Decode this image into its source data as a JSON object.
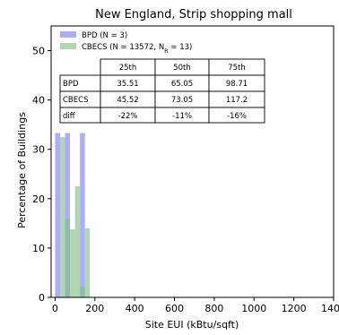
{
  "chart_data": {
    "type": "bar",
    "title": "New England, Strip shopping mall",
    "xlabel": "Site EUI (kBtu/sqft)",
    "ylabel": "Percentage of Buildings",
    "xlim": [
      -20,
      1400
    ],
    "ylim": [
      0,
      55
    ],
    "xticks": [
      "0",
      "200",
      "400",
      "600",
      "800",
      "1000",
      "1200",
      "1400"
    ],
    "yticks": [
      "0",
      "10",
      "20",
      "30",
      "40",
      "50"
    ],
    "legend_position": "top-left",
    "series": [
      {
        "name": "BPD (N = 3)",
        "color": "#7b7bff",
        "bins": [
          {
            "x0": 0,
            "x1": 25,
            "value": 33.3
          },
          {
            "x0": 50,
            "x1": 75,
            "value": 33.3
          },
          {
            "x0": 125,
            "x1": 150,
            "value": 33.3
          }
        ]
      },
      {
        "name": "CBECS (N = 13572, N",
        "name_sub": "R",
        "name_suffix": " = 13)",
        "color": "#80c080",
        "bins": [
          {
            "x0": 25,
            "x1": 50,
            "value": 32.5
          },
          {
            "x0": 50,
            "x1": 75,
            "value": 16.0
          },
          {
            "x0": 75,
            "x1": 100,
            "value": 13.8
          },
          {
            "x0": 100,
            "x1": 125,
            "value": 22.5
          },
          {
            "x0": 125,
            "x1": 150,
            "value": 2.2
          },
          {
            "x0": 150,
            "x1": 175,
            "value": 14.0
          }
        ]
      }
    ],
    "table": {
      "headers": [
        "",
        "25th",
        "50th",
        "75th"
      ],
      "rows": [
        [
          "BPD",
          "35.51",
          "65.05",
          "98.71"
        ],
        [
          "CBECS",
          "45.52",
          "73.05",
          "117.2"
        ],
        [
          "diff",
          "-22%",
          "-11%",
          "-16%"
        ]
      ]
    }
  }
}
